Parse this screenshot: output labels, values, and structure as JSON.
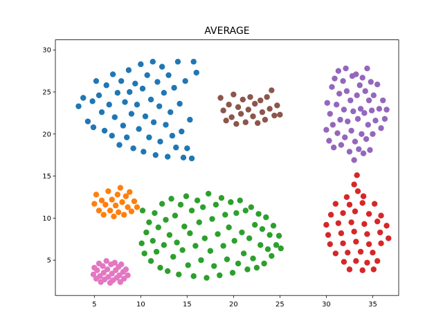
{
  "chart_data": {
    "type": "scatter",
    "title": "AVERAGE",
    "xlabel": "",
    "ylabel": "",
    "xlim": [
      0.8,
      37.8
    ],
    "ylim": [
      0.8,
      31.2
    ],
    "xticks": [
      5,
      10,
      15,
      20,
      25,
      30,
      35
    ],
    "yticks": [
      5,
      10,
      15,
      20,
      25,
      30
    ],
    "grid": false,
    "legend": "none",
    "series": [
      {
        "color": "#1f77b4",
        "points": [
          [
            3.3,
            23.3
          ],
          [
            3.8,
            24.3
          ],
          [
            4.3,
            21.5
          ],
          [
            4.8,
            23.9
          ],
          [
            4.9,
            20.8
          ],
          [
            5.2,
            26.3
          ],
          [
            5.5,
            24.6
          ],
          [
            5.8,
            22.6
          ],
          [
            6.1,
            20.4
          ],
          [
            6.3,
            25.8
          ],
          [
            6.6,
            23.5
          ],
          [
            6.9,
            19.8
          ],
          [
            7.0,
            27.1
          ],
          [
            7.2,
            22.0
          ],
          [
            7.5,
            24.9
          ],
          [
            7.7,
            18.7
          ],
          [
            7.9,
            26.3
          ],
          [
            8.1,
            21.0
          ],
          [
            8.3,
            23.8
          ],
          [
            8.5,
            19.6
          ],
          [
            8.7,
            27.6
          ],
          [
            8.8,
            25.0
          ],
          [
            9.0,
            22.4
          ],
          [
            9.2,
            18.3
          ],
          [
            9.4,
            26.0
          ],
          [
            9.6,
            23.5
          ],
          [
            9.8,
            20.6
          ],
          [
            10.0,
            28.3
          ],
          [
            10.2,
            25.4
          ],
          [
            10.3,
            17.9
          ],
          [
            10.5,
            22.1
          ],
          [
            10.7,
            27.0
          ],
          [
            10.9,
            19.6
          ],
          [
            11.1,
            24.1
          ],
          [
            11.3,
            28.6
          ],
          [
            11.4,
            21.4
          ],
          [
            11.6,
            17.5
          ],
          [
            11.8,
            26.2
          ],
          [
            12.0,
            23.3
          ],
          [
            12.1,
            19.1
          ],
          [
            12.3,
            28.0
          ],
          [
            12.5,
            24.9
          ],
          [
            12.7,
            21.1
          ],
          [
            12.9,
            17.3
          ],
          [
            13.0,
            27.0
          ],
          [
            13.2,
            22.6
          ],
          [
            13.4,
            19.8
          ],
          [
            13.6,
            25.5
          ],
          [
            13.8,
            18.4
          ],
          [
            14.0,
            28.6
          ],
          [
            14.2,
            23.6
          ],
          [
            14.4,
            20.3
          ],
          [
            14.6,
            17.2
          ],
          [
            14.8,
            26.3
          ],
          [
            15.0,
            18.3
          ],
          [
            15.3,
            21.7
          ],
          [
            15.5,
            17.1
          ],
          [
            15.7,
            28.6
          ],
          [
            16.0,
            27.3
          ]
        ]
      },
      {
        "color": "#ff7f0e",
        "points": [
          [
            5.0,
            11.7
          ],
          [
            5.2,
            12.8
          ],
          [
            5.5,
            10.9
          ],
          [
            5.8,
            12.1
          ],
          [
            6.0,
            10.4
          ],
          [
            6.2,
            11.6
          ],
          [
            6.5,
            13.2
          ],
          [
            6.7,
            10.9
          ],
          [
            6.9,
            12.2
          ],
          [
            7.1,
            10.2
          ],
          [
            7.3,
            11.5
          ],
          [
            7.5,
            12.8
          ],
          [
            7.6,
            10.7
          ],
          [
            7.8,
            13.6
          ],
          [
            8.0,
            11.9
          ],
          [
            8.2,
            10.4
          ],
          [
            8.4,
            12.6
          ],
          [
            8.6,
            11.3
          ],
          [
            8.8,
            13.1
          ],
          [
            9.0,
            10.8
          ],
          [
            9.3,
            12.0
          ],
          [
            9.6,
            11.3
          ]
        ]
      },
      {
        "color": "#2ca02c",
        "points": [
          [
            10.1,
            7.0
          ],
          [
            10.2,
            10.9
          ],
          [
            10.4,
            5.8
          ],
          [
            10.6,
            8.3
          ],
          [
            10.9,
            9.5
          ],
          [
            11.1,
            4.9
          ],
          [
            11.3,
            7.3
          ],
          [
            11.5,
            10.6
          ],
          [
            11.7,
            6.0
          ],
          [
            11.9,
            8.9
          ],
          [
            12.1,
            4.1
          ],
          [
            12.3,
            11.7
          ],
          [
            12.5,
            6.8
          ],
          [
            12.7,
            9.8
          ],
          [
            12.9,
            3.7
          ],
          [
            13.1,
            8.0
          ],
          [
            13.3,
            12.3
          ],
          [
            13.5,
            5.4
          ],
          [
            13.7,
            10.3
          ],
          [
            13.9,
            7.1
          ],
          [
            14.1,
            3.3
          ],
          [
            14.3,
            11.6
          ],
          [
            14.5,
            6.2
          ],
          [
            14.7,
            9.0
          ],
          [
            14.9,
            12.6
          ],
          [
            15.1,
            4.4
          ],
          [
            15.3,
            8.2
          ],
          [
            15.5,
            10.9
          ],
          [
            15.7,
            3.1
          ],
          [
            15.9,
            6.7
          ],
          [
            16.1,
            12.1
          ],
          [
            16.3,
            9.5
          ],
          [
            16.5,
            5.0
          ],
          [
            16.7,
            11.3
          ],
          [
            16.9,
            7.6
          ],
          [
            17.1,
            2.9
          ],
          [
            17.3,
            12.9
          ],
          [
            17.5,
            6.1
          ],
          [
            17.7,
            9.9
          ],
          [
            17.9,
            4.3
          ],
          [
            18.1,
            11.6
          ],
          [
            18.3,
            8.1
          ],
          [
            18.5,
            3.2
          ],
          [
            18.7,
            12.4
          ],
          [
            18.9,
            6.7
          ],
          [
            19.1,
            10.4
          ],
          [
            19.3,
            5.1
          ],
          [
            19.5,
            8.9
          ],
          [
            19.7,
            11.9
          ],
          [
            19.9,
            3.5
          ],
          [
            20.1,
            7.3
          ],
          [
            20.3,
            10.6
          ],
          [
            20.5,
            4.6
          ],
          [
            20.7,
            12.1
          ],
          [
            20.9,
            8.3
          ],
          [
            21.1,
            5.8
          ],
          [
            21.3,
            10.9
          ],
          [
            21.5,
            3.9
          ],
          [
            21.7,
            7.6
          ],
          [
            21.9,
            11.3
          ],
          [
            22.1,
            5.2
          ],
          [
            22.3,
            9.2
          ],
          [
            22.5,
            4.1
          ],
          [
            22.7,
            10.5
          ],
          [
            22.9,
            6.8
          ],
          [
            23.1,
            8.7
          ],
          [
            23.3,
            4.6
          ],
          [
            23.5,
            10.1
          ],
          [
            23.7,
            6.3
          ],
          [
            23.9,
            8.0
          ],
          [
            24.1,
            5.5
          ],
          [
            24.3,
            9.1
          ],
          [
            24.6,
            6.8
          ],
          [
            24.9,
            7.9
          ],
          [
            25.1,
            6.4
          ]
        ]
      },
      {
        "color": "#d62728",
        "points": [
          [
            33.3,
            15.1
          ],
          [
            33.0,
            14.0
          ],
          [
            33.4,
            13.2
          ],
          [
            32.2,
            12.5
          ],
          [
            34.0,
            12.6
          ],
          [
            31.0,
            11.7
          ],
          [
            32.5,
            11.6
          ],
          [
            33.9,
            11.8
          ],
          [
            35.2,
            11.7
          ],
          [
            30.5,
            10.4
          ],
          [
            31.8,
            10.6
          ],
          [
            33.1,
            10.8
          ],
          [
            34.6,
            10.5
          ],
          [
            35.9,
            10.3
          ],
          [
            30.0,
            9.2
          ],
          [
            31.3,
            9.4
          ],
          [
            32.7,
            9.5
          ],
          [
            34.1,
            9.3
          ],
          [
            35.5,
            9.6
          ],
          [
            36.5,
            9.1
          ],
          [
            30.2,
            8.0
          ],
          [
            31.6,
            8.2
          ],
          [
            33.0,
            8.4
          ],
          [
            34.4,
            8.1
          ],
          [
            35.8,
            8.3
          ],
          [
            36.7,
            7.6
          ],
          [
            30.4,
            6.9
          ],
          [
            31.8,
            7.0
          ],
          [
            33.2,
            7.2
          ],
          [
            34.6,
            6.9
          ],
          [
            35.9,
            7.0
          ],
          [
            31.0,
            5.8
          ],
          [
            32.3,
            5.9
          ],
          [
            33.7,
            6.0
          ],
          [
            35.0,
            5.9
          ],
          [
            31.9,
            4.8
          ],
          [
            33.2,
            4.9
          ],
          [
            34.4,
            4.7
          ],
          [
            35.5,
            4.9
          ],
          [
            32.5,
            3.9
          ],
          [
            33.9,
            3.8
          ],
          [
            35.1,
            3.9
          ]
        ]
      },
      {
        "color": "#9467bd",
        "points": [
          [
            30.0,
            20.5
          ],
          [
            30.1,
            23.7
          ],
          [
            30.3,
            19.2
          ],
          [
            30.4,
            22.4
          ],
          [
            30.6,
            25.6
          ],
          [
            30.7,
            21.1
          ],
          [
            30.8,
            18.4
          ],
          [
            30.9,
            26.6
          ],
          [
            31.1,
            23.5
          ],
          [
            31.2,
            20.1
          ],
          [
            31.3,
            27.5
          ],
          [
            31.4,
            24.8
          ],
          [
            31.5,
            21.7
          ],
          [
            31.6,
            18.7
          ],
          [
            31.8,
            26.3
          ],
          [
            31.9,
            22.9
          ],
          [
            32.0,
            19.6
          ],
          [
            32.1,
            27.8
          ],
          [
            32.2,
            25.1
          ],
          [
            32.3,
            21.5
          ],
          [
            32.5,
            17.9
          ],
          [
            32.6,
            24.0
          ],
          [
            32.7,
            20.4
          ],
          [
            32.8,
            26.9
          ],
          [
            32.9,
            22.7
          ],
          [
            33.0,
            16.9
          ],
          [
            33.1,
            19.1
          ],
          [
            33.2,
            27.1
          ],
          [
            33.3,
            24.6
          ],
          [
            33.4,
            21.8
          ],
          [
            33.5,
            18.2
          ],
          [
            33.6,
            25.8
          ],
          [
            33.7,
            23.0
          ],
          [
            33.8,
            20.0
          ],
          [
            33.9,
            26.7
          ],
          [
            34.0,
            17.7
          ],
          [
            34.1,
            22.5
          ],
          [
            34.2,
            25.1
          ],
          [
            34.3,
            19.4
          ],
          [
            34.4,
            27.8
          ],
          [
            34.5,
            21.1
          ],
          [
            34.6,
            24.0
          ],
          [
            34.7,
            18.1
          ],
          [
            34.8,
            26.2
          ],
          [
            34.9,
            22.8
          ],
          [
            35.0,
            20.0
          ],
          [
            35.1,
            24.6
          ],
          [
            35.3,
            21.6
          ],
          [
            35.5,
            25.9
          ],
          [
            35.7,
            23.0
          ],
          [
            35.9,
            20.7
          ],
          [
            36.1,
            24.0
          ],
          [
            36.3,
            21.8
          ],
          [
            36.5,
            22.9
          ]
        ]
      },
      {
        "color": "#8c564b",
        "points": [
          [
            18.6,
            24.3
          ],
          [
            18.9,
            22.8
          ],
          [
            19.2,
            21.6
          ],
          [
            19.5,
            23.5
          ],
          [
            19.8,
            22.0
          ],
          [
            20.0,
            24.7
          ],
          [
            20.3,
            21.2
          ],
          [
            20.5,
            23.2
          ],
          [
            20.8,
            22.4
          ],
          [
            21.0,
            24.1
          ],
          [
            21.3,
            21.4
          ],
          [
            21.6,
            22.9
          ],
          [
            21.8,
            24.4
          ],
          [
            22.1,
            22.1
          ],
          [
            22.3,
            23.6
          ],
          [
            22.6,
            21.3
          ],
          [
            22.9,
            24.0
          ],
          [
            23.1,
            22.6
          ],
          [
            23.4,
            21.7
          ],
          [
            23.6,
            24.4
          ],
          [
            23.9,
            23.0
          ],
          [
            24.1,
            25.2
          ],
          [
            24.4,
            22.2
          ],
          [
            24.7,
            23.4
          ],
          [
            25.0,
            22.3
          ]
        ]
      },
      {
        "color": "#e377c2",
        "points": [
          [
            4.9,
            3.3
          ],
          [
            5.0,
            4.1
          ],
          [
            5.2,
            2.8
          ],
          [
            5.3,
            3.8
          ],
          [
            5.5,
            4.6
          ],
          [
            5.6,
            3.1
          ],
          [
            5.7,
            2.4
          ],
          [
            5.9,
            4.3
          ],
          [
            6.0,
            3.5
          ],
          [
            6.1,
            2.7
          ],
          [
            6.3,
            4.9
          ],
          [
            6.4,
            3.9
          ],
          [
            6.5,
            3.0
          ],
          [
            6.7,
            2.3
          ],
          [
            6.8,
            4.5
          ],
          [
            6.9,
            3.4
          ],
          [
            7.0,
            2.6
          ],
          [
            7.2,
            4.7
          ],
          [
            7.3,
            3.8
          ],
          [
            7.4,
            2.9
          ],
          [
            7.6,
            4.2
          ],
          [
            7.7,
            3.2
          ],
          [
            7.8,
            2.4
          ],
          [
            7.9,
            4.5
          ],
          [
            8.1,
            3.6
          ],
          [
            8.2,
            2.8
          ],
          [
            8.4,
            3.9
          ],
          [
            8.6,
            3.2
          ]
        ]
      }
    ]
  }
}
